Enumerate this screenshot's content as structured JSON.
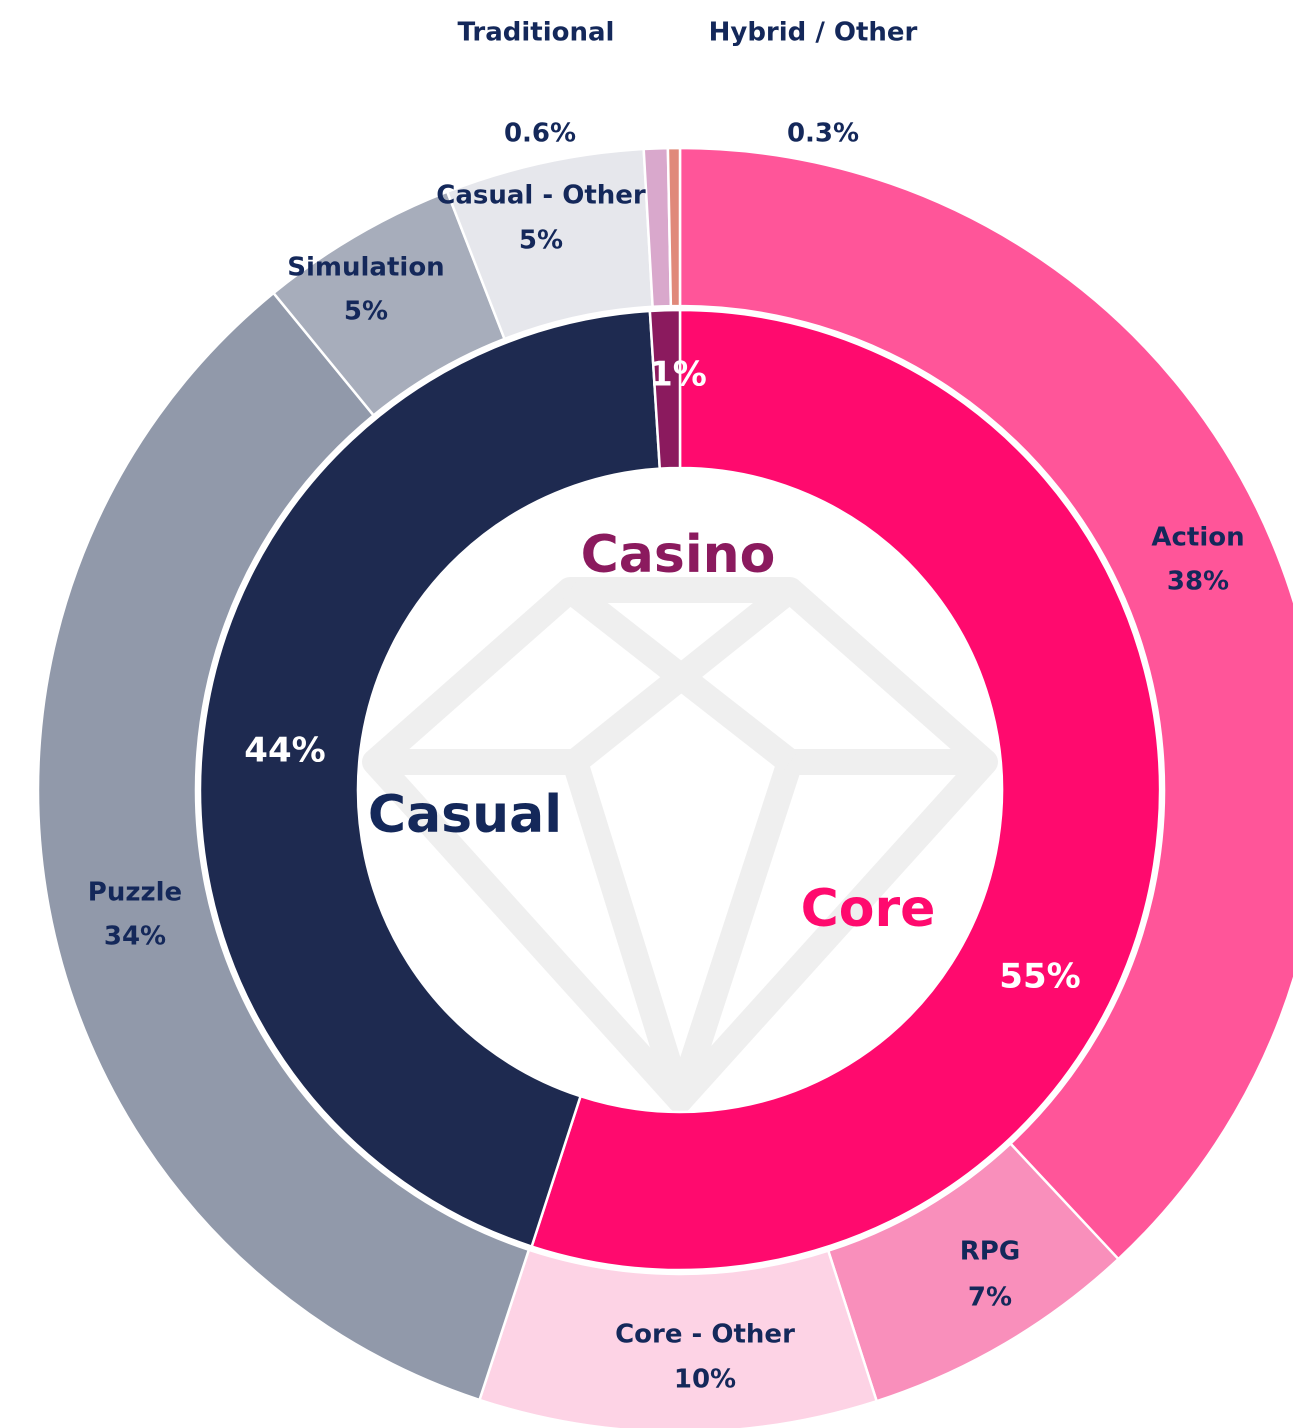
{
  "chart_data": [
    {
      "type": "pie",
      "categories": [
        "Core",
        "Casual",
        "Casino"
      ],
      "values": [
        55,
        44,
        1
      ],
      "value_labels": [
        "55%",
        "44%",
        "1%"
      ],
      "colors": [
        "#ff0a6e",
        "#1e2a50",
        "#8b1a5e"
      ]
    },
    {
      "type": "pie",
      "categories": [
        "Action",
        "RPG",
        "Core - Other",
        "Puzzle",
        "Simulation",
        "Casual - Other",
        "Traditional",
        "Hybrid / Other"
      ],
      "values": [
        38,
        7,
        10,
        34,
        5,
        5,
        0.6,
        0.3
      ],
      "value_labels": [
        "38%",
        "7%",
        "10%",
        "34%",
        "5%",
        "5%",
        "0.6%",
        "0.3%"
      ],
      "colors": [
        "#ff5599",
        "#f98fbb",
        "#fdd3e5",
        "#9199aa",
        "#a7adbb",
        "#e6e7ec",
        "#d9a8cc",
        "#e0897a"
      ]
    }
  ]
}
